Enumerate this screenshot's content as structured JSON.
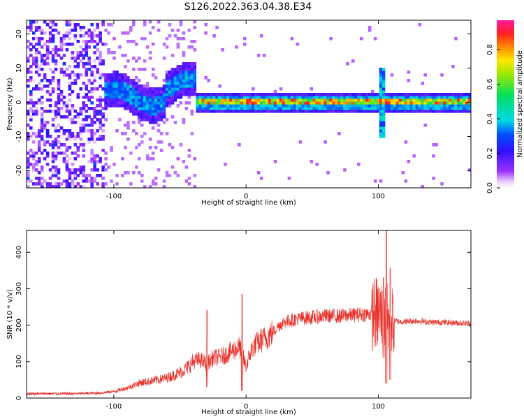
{
  "figure": {
    "title": "S126.2022.363.04.38.E34"
  },
  "chart_data": [
    {
      "type": "heatmap",
      "name": "spectrogram",
      "xlabel": "Height of straight line (km)",
      "ylabel": "Frequency (Hz)",
      "xlim": [
        -166,
        170
      ],
      "ylim": [
        -25,
        24
      ],
      "x_ticks": [
        -100,
        0,
        100
      ],
      "x_tick_labels": [
        "-100",
        "0",
        "100"
      ],
      "y_ticks": [
        -20,
        -10,
        0,
        10,
        20
      ],
      "y_tick_labels": [
        "-20",
        "-10",
        "0",
        "10",
        "20"
      ],
      "colorbar": {
        "label": "Normalized spectral amplitude",
        "range": [
          0.0,
          0.97
        ],
        "ticks": [
          0.0,
          0.2,
          0.4,
          0.6,
          0.8
        ],
        "tick_labels": [
          "0.0",
          "0.2",
          "0.4",
          "0.6",
          "0.8"
        ],
        "colormap": "hsv (purple → blue → cyan → green → yellow → orange → red → magenta)"
      },
      "features": {
        "noise_region_x": [
          -166,
          -108
        ],
        "noisy_band": {
          "x": [
            -108,
            -37
          ],
          "center_hz": [
            0,
            4
          ],
          "amplitude": 0.3
        },
        "main_band": {
          "x": [
            -37,
            170
          ],
          "center_hz": 0,
          "halfwidth_hz": 1.5,
          "amplitude": 0.9
        },
        "spike_x": 103
      }
    },
    {
      "type": "line",
      "name": "snr",
      "xlabel": "Height of straight line (km)",
      "ylabel": "SNR (10 * v/v)",
      "xlim": [
        -166,
        170
      ],
      "ylim": [
        0,
        460
      ],
      "x_ticks": [
        -100,
        0,
        100
      ],
      "x_tick_labels": [
        "-100",
        "0",
        "100"
      ],
      "y_ticks": [
        0,
        100,
        200,
        300,
        400
      ],
      "y_tick_labels": [
        "0",
        "100",
        "200",
        "300",
        "400"
      ],
      "color": "#e8302a",
      "x": [
        -166,
        -150,
        -130,
        -110,
        -100,
        -90,
        -80,
        -70,
        -60,
        -50,
        -45,
        -40,
        -35,
        -30,
        -28,
        -25,
        -20,
        -15,
        -10,
        -5,
        -2,
        0,
        2,
        5,
        10,
        15,
        20,
        25,
        30,
        40,
        50,
        60,
        70,
        80,
        90,
        95,
        100,
        103,
        105,
        106,
        107,
        108,
        110,
        112,
        115,
        120,
        130,
        140,
        150,
        160,
        170
      ],
      "y": [
        12,
        12,
        12,
        14,
        18,
        28,
        42,
        48,
        55,
        70,
        82,
        100,
        105,
        95,
        100,
        110,
        112,
        120,
        130,
        140,
        110,
        85,
        110,
        140,
        155,
        165,
        180,
        200,
        210,
        218,
        222,
        225,
        225,
        228,
        230,
        232,
        232,
        225,
        220,
        230,
        215,
        210,
        215,
        212,
        210,
        210,
        212,
        208,
        208,
        206,
        205
      ],
      "spikes": [
        {
          "x": -29.5,
          "y": 240,
          "low": 30
        },
        {
          "x": -3,
          "y": 285,
          "low": 20
        },
        {
          "x": 104,
          "y": 330,
          "low": 110
        },
        {
          "x": 106,
          "y": 460,
          "low": 40
        },
        {
          "x": 109,
          "y": 355,
          "low": 50
        }
      ]
    }
  ]
}
